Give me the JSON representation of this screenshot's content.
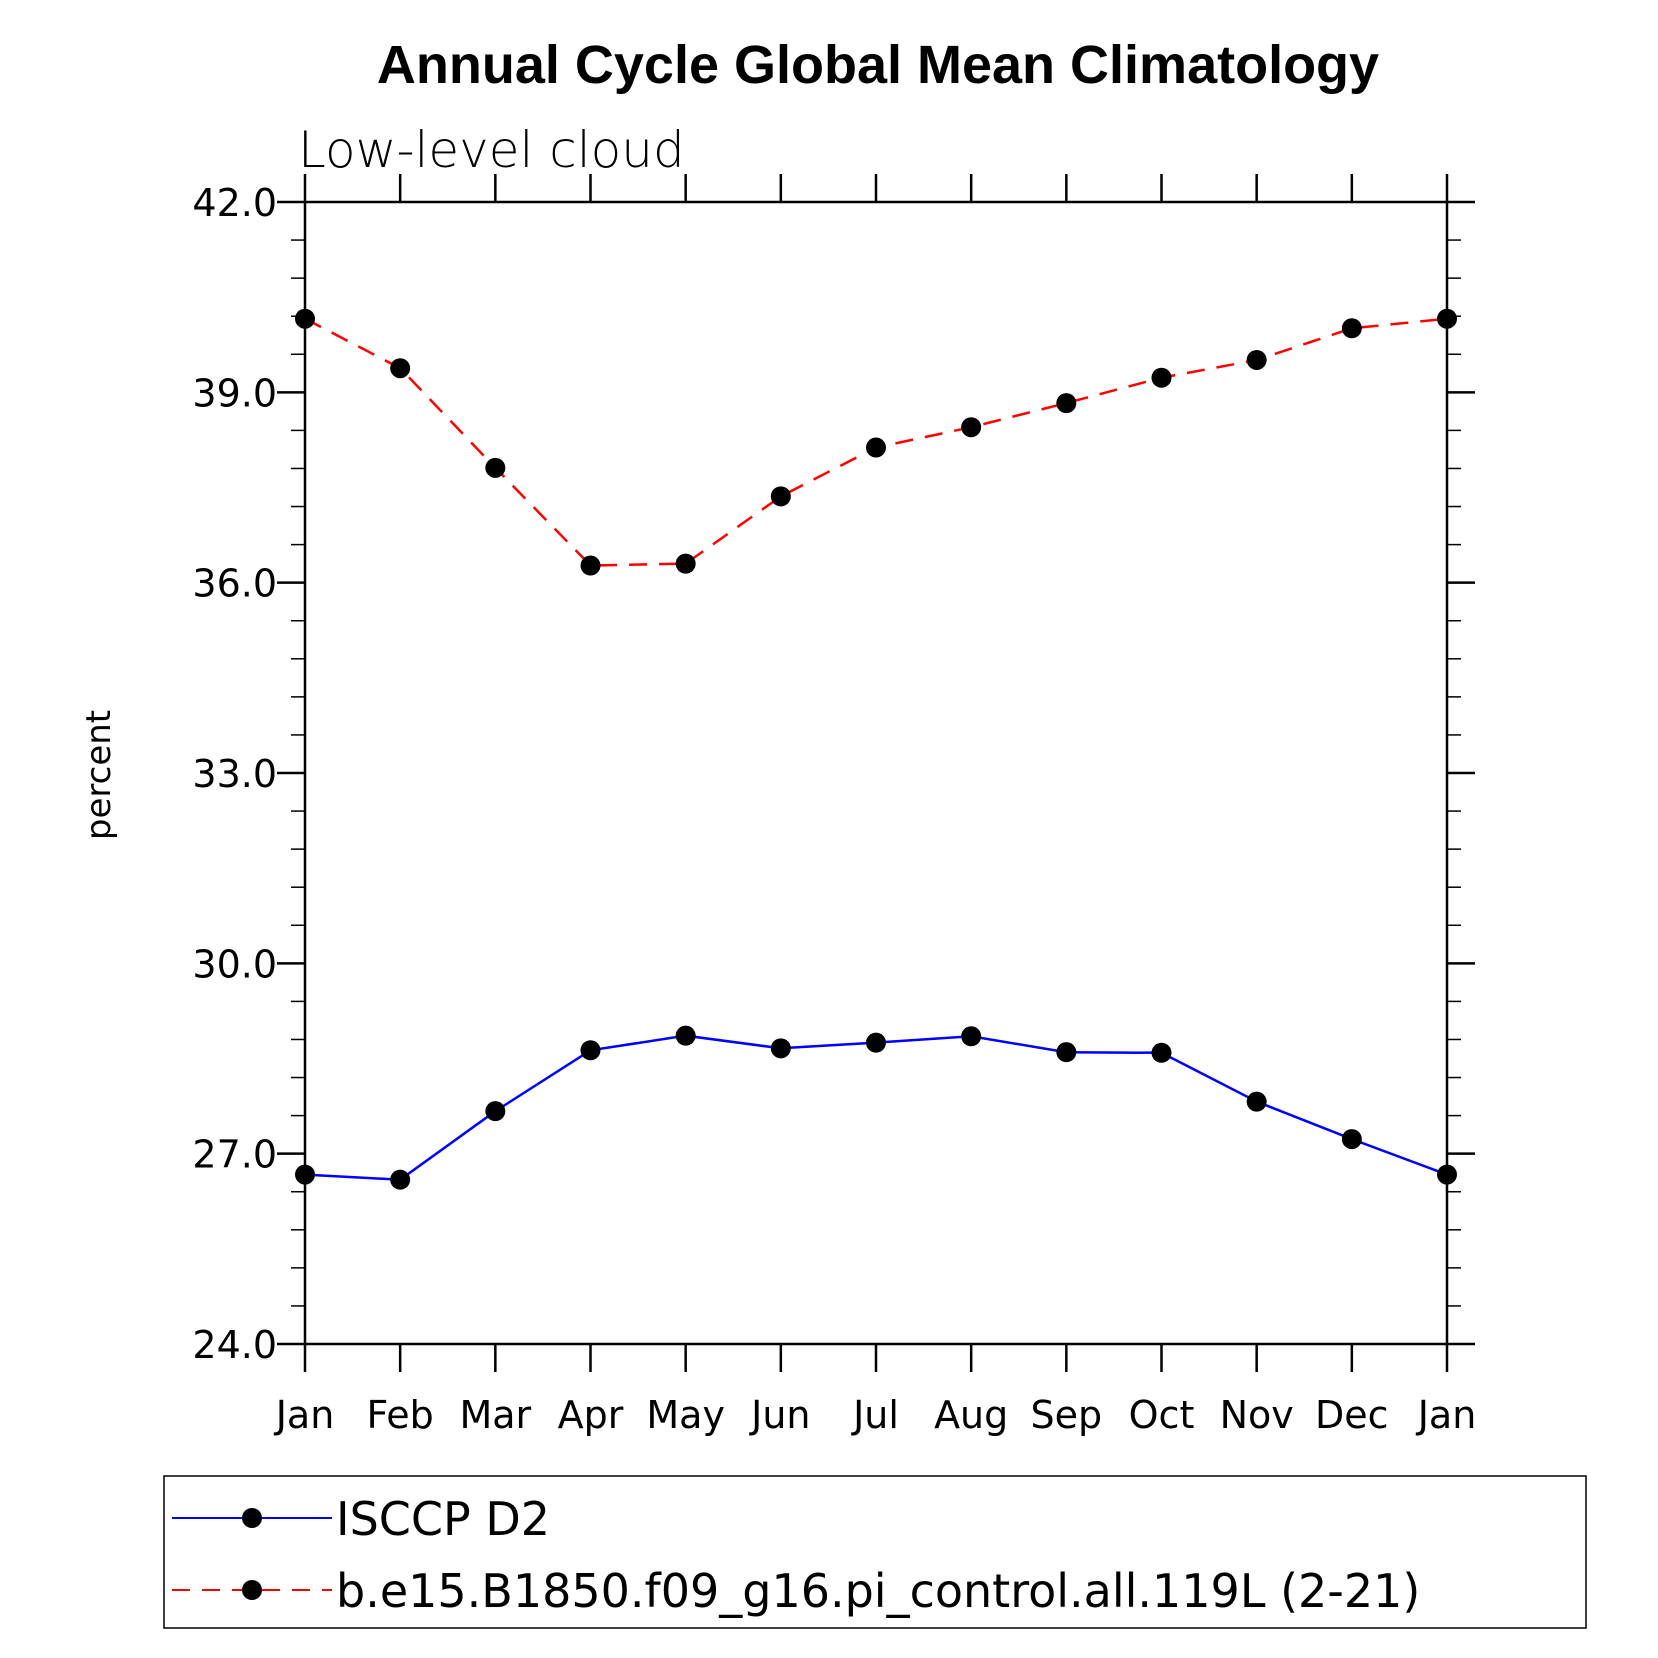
{
  "chart_data": {
    "type": "line",
    "title": "Annual Cycle Global Mean Climatology",
    "subtitle": "Low-level cloud",
    "ylabel": "percent",
    "xlabel": "",
    "ylim": [
      24.0,
      42.0
    ],
    "yticks": [
      "24.0",
      "27.0",
      "30.0",
      "33.0",
      "36.0",
      "39.0",
      "42.0"
    ],
    "categories": [
      "Jan",
      "Feb",
      "Mar",
      "Apr",
      "May",
      "Jun",
      "Jul",
      "Aug",
      "Sep",
      "Oct",
      "Nov",
      "Dec",
      "Jan"
    ],
    "grid": false,
    "legend_position": "bottom",
    "series": [
      {
        "name": "ISCCP D2",
        "color": "#0000ff",
        "line_style": "solid",
        "marker": "circle",
        "values": [
          26.67,
          26.59,
          27.67,
          28.63,
          28.86,
          28.66,
          28.75,
          28.85,
          28.6,
          28.59,
          27.82,
          27.23,
          26.67
        ]
      },
      {
        "name": "b.e15.B1850.f09_g16.pi_control.all.119L (2-21)",
        "color": "#ff0000",
        "line_style": "dashed",
        "marker": "circle",
        "values": [
          40.16,
          39.38,
          37.81,
          36.27,
          36.3,
          37.36,
          38.13,
          38.45,
          38.83,
          39.23,
          39.51,
          40.01,
          40.16
        ]
      }
    ]
  }
}
